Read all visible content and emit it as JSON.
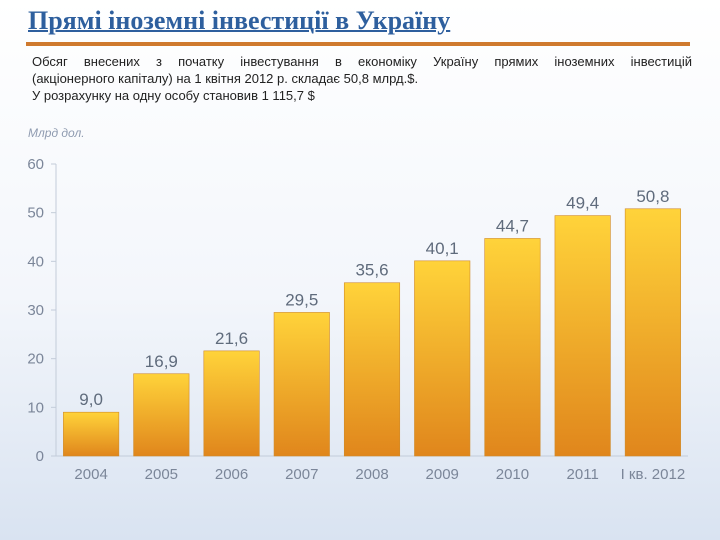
{
  "slide": {
    "title": "Прямі іноземні інвестиції в Україну",
    "intro_line1": "Обсяг внесених з початку інвестування в економіку Україну прямих іноземних інвестицій",
    "intro_line2": "(акціонерного капіталу) на 1 квітня 2012 р. складає 50,8 млрд.$.",
    "intro_line3": "У розрахунку на одну особу становив 1 115,7 $"
  },
  "colors": {
    "title": "#2e5f9e",
    "rule": "#cf7a2e",
    "bar_top": "#ffd33a",
    "bar_bottom": "#e0861c"
  },
  "chart_data": {
    "type": "bar",
    "unit_label": "Млрд дол.",
    "categories": [
      "2004",
      "2005",
      "2006",
      "2007",
      "2008",
      "2009",
      "2010",
      "2011",
      "І кв. 2012"
    ],
    "values": [
      9.0,
      16.9,
      21.6,
      29.5,
      35.6,
      40.1,
      44.7,
      49.4,
      50.8
    ],
    "value_labels": [
      "9,0",
      "16,9",
      "21,6",
      "29,5",
      "35,6",
      "40,1",
      "44,7",
      "49,4",
      "50,8"
    ],
    "ylim": [
      0,
      60
    ],
    "yticks": [
      0,
      10,
      20,
      30,
      40,
      50,
      60
    ],
    "grid": false,
    "legend": "none"
  }
}
